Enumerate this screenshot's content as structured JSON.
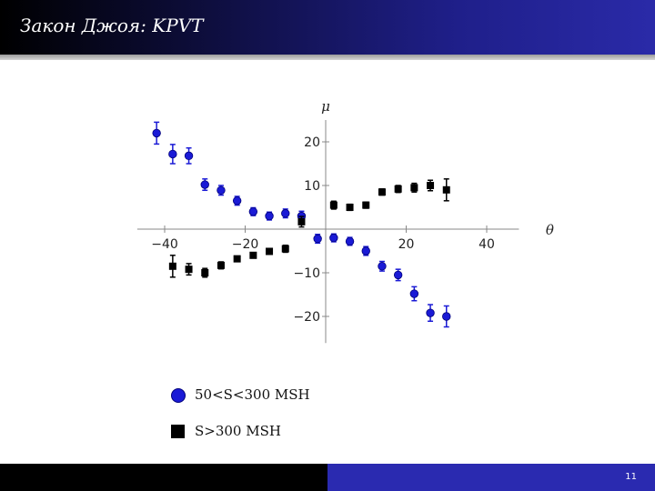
{
  "header": {
    "title": "Закон Джоя: KPVT"
  },
  "legend": {
    "circle_label": "50<S<300 MSH",
    "square_label": "S>300 MSH"
  },
  "footer": {
    "page_number": "11"
  },
  "chart_data": {
    "type": "scatter",
    "title": "",
    "xlabel": "θ",
    "ylabel": "μ",
    "xlim": [
      -45,
      48
    ],
    "ylim": [
      -24,
      25
    ],
    "x_ticks": [
      {
        "value": -40,
        "label": "−40"
      },
      {
        "value": -20,
        "label": "−20"
      },
      {
        "value": 20,
        "label": "20"
      },
      {
        "value": 40,
        "label": "40"
      }
    ],
    "y_ticks": [
      {
        "value": 20,
        "label": "20"
      },
      {
        "value": 10,
        "label": "10"
      },
      {
        "value": -10,
        "label": "−10"
      },
      {
        "value": -20,
        "label": "−20"
      }
    ],
    "grid": false,
    "series": [
      {
        "name": "50<S<300 MSH",
        "marker": "circle",
        "color": "#1a1ad6",
        "points": [
          {
            "x": -42,
            "y": 22.0,
            "err": 2.5
          },
          {
            "x": -38,
            "y": 17.2,
            "err": 2.2
          },
          {
            "x": -34,
            "y": 16.8,
            "err": 1.8
          },
          {
            "x": -30,
            "y": 10.2,
            "err": 1.3
          },
          {
            "x": -26,
            "y": 8.9,
            "err": 1.1
          },
          {
            "x": -22,
            "y": 6.5,
            "err": 1.0
          },
          {
            "x": -18,
            "y": 4.0,
            "err": 0.9
          },
          {
            "x": -14,
            "y": 3.0,
            "err": 0.9
          },
          {
            "x": -10,
            "y": 3.6,
            "err": 1.0
          },
          {
            "x": -6,
            "y": 3.0,
            "err": 1.1
          },
          {
            "x": -2,
            "y": -2.2,
            "err": 1.0
          },
          {
            "x": 2,
            "y": -2.0,
            "err": 0.9
          },
          {
            "x": 6,
            "y": -2.8,
            "err": 0.9
          },
          {
            "x": 10,
            "y": -5.0,
            "err": 1.0
          },
          {
            "x": 14,
            "y": -8.5,
            "err": 1.1
          },
          {
            "x": 18,
            "y": -10.5,
            "err": 1.3
          },
          {
            "x": 22,
            "y": -14.8,
            "err": 1.6
          },
          {
            "x": 26,
            "y": -19.2,
            "err": 1.9
          },
          {
            "x": 30,
            "y": -20.0,
            "err": 2.4
          }
        ]
      },
      {
        "name": "S>300 MSH",
        "marker": "square",
        "color": "#000000",
        "points": [
          {
            "x": -38,
            "y": -8.5,
            "err": 2.5
          },
          {
            "x": -34,
            "y": -9.2,
            "err": 1.3
          },
          {
            "x": -30,
            "y": -10.0,
            "err": 1.0
          },
          {
            "x": -26,
            "y": -8.3,
            "err": 0.8
          },
          {
            "x": -22,
            "y": -6.8,
            "err": 0.6
          },
          {
            "x": -18,
            "y": -6.0,
            "err": 0.6
          },
          {
            "x": -14,
            "y": -5.1,
            "err": 0.6
          },
          {
            "x": -10,
            "y": -4.5,
            "err": 0.8
          },
          {
            "x": -6,
            "y": 1.7,
            "err": 1.2
          },
          {
            "x": 2,
            "y": 5.5,
            "err": 0.9
          },
          {
            "x": 6,
            "y": 5.0,
            "err": 0.7
          },
          {
            "x": 10,
            "y": 5.5,
            "err": 0.7
          },
          {
            "x": 14,
            "y": 8.5,
            "err": 0.7
          },
          {
            "x": 18,
            "y": 9.2,
            "err": 0.8
          },
          {
            "x": 22,
            "y": 9.5,
            "err": 1.0
          },
          {
            "x": 26,
            "y": 10.0,
            "err": 1.2
          },
          {
            "x": 30,
            "y": 9.0,
            "err": 2.5
          }
        ]
      }
    ]
  }
}
